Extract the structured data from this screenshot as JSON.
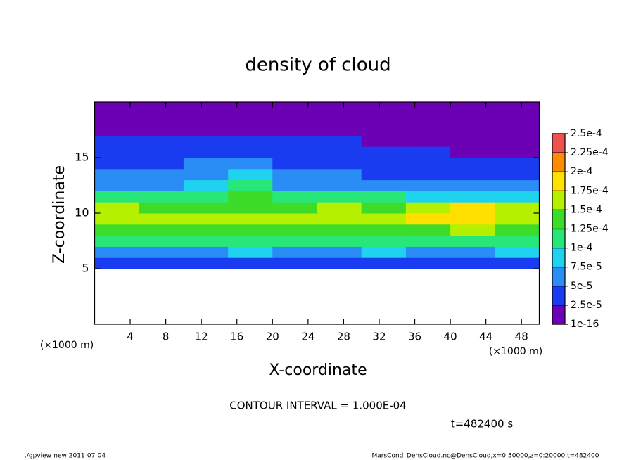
{
  "chart_data": {
    "type": "heatmap",
    "title": "density of cloud",
    "x_label": "X-coordinate",
    "y_label": "Z-coordinate",
    "unit_label": "(×1000 m)",
    "xlim": [
      0,
      50
    ],
    "xticks": [
      4,
      8,
      12,
      16,
      20,
      24,
      28,
      32,
      36,
      40,
      44,
      48
    ],
    "ylim": [
      0,
      20
    ],
    "yticks": [
      5,
      10,
      15
    ],
    "x_edges": [
      0,
      5,
      10,
      15,
      20,
      25,
      30,
      35,
      40,
      45,
      50
    ],
    "z_edges": [
      5,
      6,
      7,
      8,
      9,
      10,
      11,
      12,
      13,
      14,
      15,
      16,
      17,
      18,
      19,
      20
    ],
    "values": [
      [
        3e-05,
        3.5e-05,
        3e-05,
        3e-05,
        3.5e-05,
        3e-05,
        3e-05,
        3.5e-05,
        3e-05,
        3e-05
      ],
      [
        7e-05,
        6.5e-05,
        7e-05,
        7.5e-05,
        7e-05,
        7e-05,
        8e-05,
        7e-05,
        7e-05,
        7.5e-05
      ],
      [
        0.000105,
        0.00011,
        0.000105,
        0.00011,
        0.000105,
        0.00011,
        0.0001,
        0.00011,
        0.000115,
        0.00011
      ],
      [
        0.000135,
        0.00014,
        0.00013,
        0.000135,
        0.00014,
        0.000135,
        0.000135,
        0.000145,
        0.00015,
        0.00014
      ],
      [
        0.00016,
        0.000155,
        0.00015,
        0.000155,
        0.000155,
        0.000165,
        0.00016,
        0.000175,
        0.00019,
        0.00017
      ],
      [
        0.00015,
        0.000145,
        0.000135,
        0.00014,
        0.000145,
        0.00015,
        0.000145,
        0.00016,
        0.000175,
        0.000155
      ],
      [
        0.000105,
        0.00011,
        0.000115,
        0.00013,
        0.00011,
        0.000105,
        0.0001,
        9e-05,
        9e-05,
        8.5e-05
      ],
      [
        6.5e-05,
        7e-05,
        8.5e-05,
        0.000115,
        7e-05,
        6e-05,
        5.5e-05,
        5.5e-05,
        5e-05,
        5e-05
      ],
      [
        5e-05,
        5.5e-05,
        6.5e-05,
        9e-05,
        5.5e-05,
        5e-05,
        4.5e-05,
        4.5e-05,
        4e-05,
        4e-05
      ],
      [
        4e-05,
        4.5e-05,
        5e-05,
        5.5e-05,
        4.5e-05,
        4.5e-05,
        4e-05,
        3.5e-05,
        3e-05,
        3e-05
      ],
      [
        3.5e-05,
        3.5e-05,
        4e-05,
        4e-05,
        4e-05,
        3.5e-05,
        3e-05,
        2.5e-05,
        2e-05,
        2e-05
      ],
      [
        2.5e-05,
        3e-05,
        3e-05,
        3e-05,
        3e-05,
        2.5e-05,
        2e-05,
        1.5e-05,
        1e-05,
        1e-05
      ],
      [
        2e-05,
        2e-05,
        2e-05,
        2e-05,
        2e-05,
        1.5e-05,
        1e-05,
        5e-06,
        5e-06,
        5e-06
      ],
      [
        1e-05,
        1e-05,
        1e-05,
        1e-05,
        1e-05,
        5e-06,
        5e-06,
        5e-06,
        5e-06,
        5e-06
      ],
      [
        5e-06,
        5e-06,
        5e-06,
        5e-06,
        5e-06,
        5e-06,
        5e-06,
        5e-06,
        5e-06,
        5e-06
      ]
    ],
    "colorbar": {
      "levels": [
        {
          "value": 1e-16,
          "label": "1e-16"
        },
        {
          "value": 2.5e-05,
          "label": "2.5e-5"
        },
        {
          "value": 5e-05,
          "label": "5e-5"
        },
        {
          "value": 7.5e-05,
          "label": "7.5e-5"
        },
        {
          "value": 0.0001,
          "label": "1e-4"
        },
        {
          "value": 0.000125,
          "label": "1.25e-4"
        },
        {
          "value": 0.00015,
          "label": "1.5e-4"
        },
        {
          "value": 0.000175,
          "label": "1.75e-4"
        },
        {
          "value": 0.0002,
          "label": "2e-4"
        },
        {
          "value": 0.000225,
          "label": "2.25e-4"
        },
        {
          "value": 0.00025,
          "label": "2.5e-4"
        }
      ],
      "colors": [
        "#6c00b4",
        "#1a3cf0",
        "#2a8cf5",
        "#1ed2f0",
        "#28e678",
        "#3cdc28",
        "#b4f000",
        "#ffe000",
        "#ff8c00",
        "#f05050"
      ]
    },
    "contour_interval": "CONTOUR INTERVAL = 1.000E-04",
    "time_label": "t=482400 s"
  },
  "footer": {
    "left": "./gpview-new   2011-07-04",
    "right": "MarsCond_DensCloud.nc@DensCloud,x=0:50000,z=0:20000,t=482400"
  }
}
